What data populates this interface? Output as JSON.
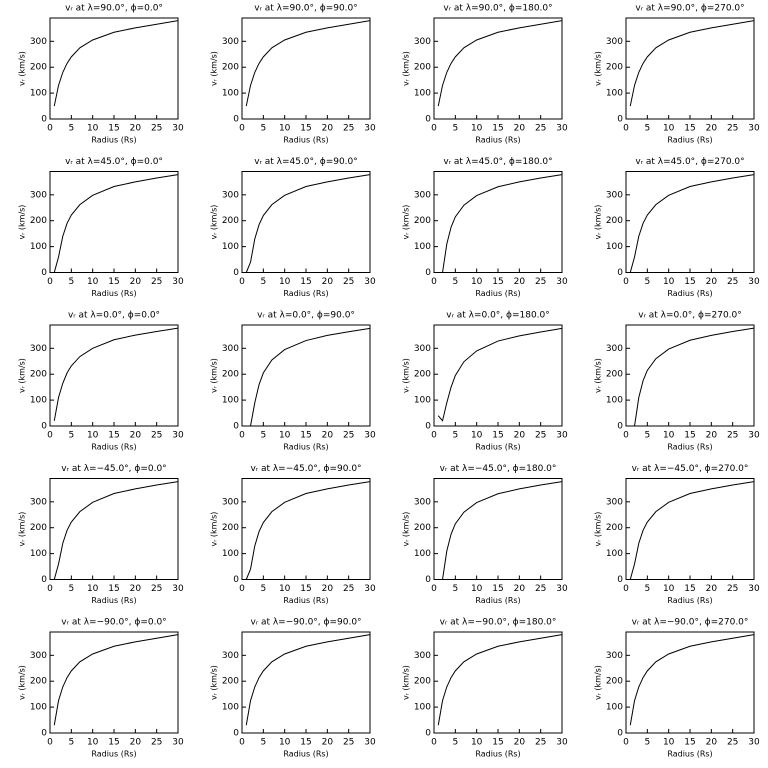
{
  "chart_data": [
    {
      "type": "line",
      "title": "vᵣ at λ=90.0°, ϕ=0.0°",
      "x_label": "Radius (Rs)",
      "y_label": "vᵣ (km/s)",
      "x": [
        1,
        2,
        3,
        4,
        5,
        7,
        10,
        15,
        20,
        25,
        30
      ],
      "values": [
        50,
        130,
        180,
        215,
        240,
        275,
        305,
        335,
        352,
        366,
        380
      ],
      "color": "#000000",
      "xlim": [
        0,
        30
      ],
      "ylim": [
        0,
        390
      ],
      "xticks": [
        0,
        5,
        10,
        15,
        20,
        25,
        30
      ],
      "yticks": [
        0,
        100,
        200,
        300
      ]
    },
    {
      "type": "line",
      "title": "vᵣ at λ=90.0°, ϕ=90.0°",
      "x_label": "Radius (Rs)",
      "y_label": "vᵣ (km/s)",
      "x": [
        1,
        2,
        3,
        4,
        5,
        7,
        10,
        15,
        20,
        25,
        30
      ],
      "values": [
        50,
        130,
        180,
        215,
        240,
        275,
        305,
        335,
        352,
        366,
        380
      ],
      "color": "#000000",
      "xlim": [
        0,
        30
      ],
      "ylim": [
        0,
        390
      ],
      "xticks": [
        0,
        5,
        10,
        15,
        20,
        25,
        30
      ],
      "yticks": [
        0,
        100,
        200,
        300
      ]
    },
    {
      "type": "line",
      "title": "vᵣ at λ=90.0°, ϕ=180.0°",
      "x_label": "Radius (Rs)",
      "y_label": "vᵣ (km/s)",
      "x": [
        1,
        2,
        3,
        4,
        5,
        7,
        10,
        15,
        20,
        25,
        30
      ],
      "values": [
        50,
        130,
        180,
        215,
        240,
        275,
        305,
        335,
        352,
        366,
        380
      ],
      "color": "#000000",
      "xlim": [
        0,
        30
      ],
      "ylim": [
        0,
        390
      ],
      "xticks": [
        0,
        5,
        10,
        15,
        20,
        25,
        30
      ],
      "yticks": [
        0,
        100,
        200,
        300
      ]
    },
    {
      "type": "line",
      "title": "vᵣ at λ=90.0°, ϕ=270.0°",
      "x_label": "Radius (Rs)",
      "y_label": "vᵣ (km/s)",
      "x": [
        1,
        2,
        3,
        4,
        5,
        7,
        10,
        15,
        20,
        25,
        30
      ],
      "values": [
        50,
        130,
        180,
        215,
        240,
        275,
        305,
        335,
        352,
        366,
        380
      ],
      "color": "#000000",
      "xlim": [
        0,
        30
      ],
      "ylim": [
        0,
        390
      ],
      "xticks": [
        0,
        5,
        10,
        15,
        20,
        25,
        30
      ],
      "yticks": [
        0,
        100,
        200,
        300
      ]
    },
    {
      "type": "line",
      "title": "vᵣ at λ=45.0°, ϕ=0.0°",
      "x_label": "Radius (Rs)",
      "y_label": "vᵣ (km/s)",
      "x": [
        1,
        2,
        3,
        4,
        5,
        7,
        10,
        15,
        20,
        25,
        30
      ],
      "values": [
        0,
        60,
        140,
        190,
        222,
        262,
        298,
        332,
        350,
        365,
        378
      ],
      "color": "#000000",
      "xlim": [
        0,
        30
      ],
      "ylim": [
        0,
        390
      ],
      "xticks": [
        0,
        5,
        10,
        15,
        20,
        25,
        30
      ],
      "yticks": [
        0,
        100,
        200,
        300
      ]
    },
    {
      "type": "line",
      "title": "vᵣ at λ=45.0°, ϕ=90.0°",
      "x_label": "Radius (Rs)",
      "y_label": "vᵣ (km/s)",
      "x": [
        1,
        2,
        3,
        4,
        5,
        7,
        10,
        15,
        20,
        25,
        30
      ],
      "values": [
        0,
        40,
        130,
        185,
        220,
        262,
        298,
        332,
        350,
        365,
        378
      ],
      "color": "#000000",
      "xlim": [
        0,
        30
      ],
      "ylim": [
        0,
        390
      ],
      "xticks": [
        0,
        5,
        10,
        15,
        20,
        25,
        30
      ],
      "yticks": [
        0,
        100,
        200,
        300
      ]
    },
    {
      "type": "line",
      "title": "vᵣ at λ=45.0°, ϕ=180.0°",
      "x_label": "Radius (Rs)",
      "y_label": "vᵣ (km/s)",
      "x": [
        1,
        2,
        3,
        4,
        5,
        7,
        10,
        15,
        20,
        25,
        30
      ],
      "values": [
        0,
        0,
        110,
        175,
        215,
        260,
        297,
        331,
        350,
        365,
        378
      ],
      "color": "#000000",
      "xlim": [
        0,
        30
      ],
      "ylim": [
        0,
        390
      ],
      "xticks": [
        0,
        5,
        10,
        15,
        20,
        25,
        30
      ],
      "yticks": [
        0,
        100,
        200,
        300
      ]
    },
    {
      "type": "line",
      "title": "vᵣ at λ=45.0°, ϕ=270.0°",
      "x_label": "Radius (Rs)",
      "y_label": "vᵣ (km/s)",
      "x": [
        1,
        2,
        3,
        4,
        5,
        7,
        10,
        15,
        20,
        25,
        30
      ],
      "values": [
        0,
        60,
        140,
        190,
        222,
        262,
        298,
        332,
        350,
        365,
        378
      ],
      "color": "#000000",
      "xlim": [
        0,
        30
      ],
      "ylim": [
        0,
        390
      ],
      "xticks": [
        0,
        5,
        10,
        15,
        20,
        25,
        30
      ],
      "yticks": [
        0,
        100,
        200,
        300
      ]
    },
    {
      "type": "line",
      "title": "vᵣ at λ=0.0°, ϕ=0.0°",
      "x_label": "Radius (Rs)",
      "y_label": "vᵣ (km/s)",
      "x": [
        1,
        2,
        3,
        4,
        5,
        7,
        10,
        15,
        20,
        25,
        30
      ],
      "values": [
        20,
        110,
        165,
        205,
        232,
        268,
        300,
        333,
        351,
        365,
        378
      ],
      "color": "#000000",
      "xlim": [
        0,
        30
      ],
      "ylim": [
        0,
        390
      ],
      "xticks": [
        0,
        5,
        10,
        15,
        20,
        25,
        30
      ],
      "yticks": [
        0,
        100,
        200,
        300
      ]
    },
    {
      "type": "line",
      "title": "vᵣ at λ=0.0°, ϕ=90.0°",
      "x_label": "Radius (Rs)",
      "y_label": "vᵣ (km/s)",
      "x": [
        1,
        2,
        3,
        4,
        5,
        7,
        10,
        15,
        20,
        25,
        30
      ],
      "values": [
        0,
        0,
        90,
        160,
        205,
        255,
        295,
        330,
        350,
        364,
        377
      ],
      "color": "#000000",
      "xlim": [
        0,
        30
      ],
      "ylim": [
        0,
        390
      ],
      "xticks": [
        0,
        5,
        10,
        15,
        20,
        25,
        30
      ],
      "yticks": [
        0,
        100,
        200,
        300
      ]
    },
    {
      "type": "line",
      "title": "vᵣ at λ=0.0°, ϕ=180.0°",
      "x_label": "Radius (Rs)",
      "y_label": "vᵣ (km/s)",
      "x": [
        1,
        2,
        3,
        4,
        5,
        7,
        10,
        15,
        20,
        25,
        30
      ],
      "values": [
        40,
        20,
        90,
        150,
        195,
        248,
        290,
        328,
        348,
        363,
        377
      ],
      "color": "#000000",
      "xlim": [
        0,
        30
      ],
      "ylim": [
        0,
        390
      ],
      "xticks": [
        0,
        5,
        10,
        15,
        20,
        25,
        30
      ],
      "yticks": [
        0,
        100,
        200,
        300
      ]
    },
    {
      "type": "line",
      "title": "vᵣ at λ=0.0°, ϕ=270.0°",
      "x_label": "Radius (Rs)",
      "y_label": "vᵣ (km/s)",
      "x": [
        1,
        2,
        3,
        4,
        5,
        7,
        10,
        15,
        20,
        25,
        30
      ],
      "values": [
        0,
        0,
        110,
        175,
        215,
        260,
        297,
        331,
        350,
        365,
        378
      ],
      "color": "#000000",
      "xlim": [
        0,
        30
      ],
      "ylim": [
        0,
        390
      ],
      "xticks": [
        0,
        5,
        10,
        15,
        20,
        25,
        30
      ],
      "yticks": [
        0,
        100,
        200,
        300
      ]
    },
    {
      "type": "line",
      "title": "vᵣ at λ=−45.0°, ϕ=0.0°",
      "x_label": "Radius (Rs)",
      "y_label": "vᵣ (km/s)",
      "x": [
        1,
        2,
        3,
        4,
        5,
        7,
        10,
        15,
        20,
        25,
        30
      ],
      "values": [
        0,
        60,
        140,
        190,
        222,
        262,
        298,
        332,
        350,
        365,
        378
      ],
      "color": "#000000",
      "xlim": [
        0,
        30
      ],
      "ylim": [
        0,
        390
      ],
      "xticks": [
        0,
        5,
        10,
        15,
        20,
        25,
        30
      ],
      "yticks": [
        0,
        100,
        200,
        300
      ]
    },
    {
      "type": "line",
      "title": "vᵣ at λ=−45.0°, ϕ=90.0°",
      "x_label": "Radius (Rs)",
      "y_label": "vᵣ (km/s)",
      "x": [
        1,
        2,
        3,
        4,
        5,
        7,
        10,
        15,
        20,
        25,
        30
      ],
      "values": [
        0,
        40,
        130,
        185,
        220,
        262,
        298,
        332,
        350,
        365,
        378
      ],
      "color": "#000000",
      "xlim": [
        0,
        30
      ],
      "ylim": [
        0,
        390
      ],
      "xticks": [
        0,
        5,
        10,
        15,
        20,
        25,
        30
      ],
      "yticks": [
        0,
        100,
        200,
        300
      ]
    },
    {
      "type": "line",
      "title": "vᵣ at λ=−45.0°, ϕ=180.0°",
      "x_label": "Radius (Rs)",
      "y_label": "vᵣ (km/s)",
      "x": [
        1,
        2,
        3,
        4,
        5,
        7,
        10,
        15,
        20,
        25,
        30
      ],
      "values": [
        0,
        0,
        110,
        175,
        215,
        260,
        297,
        331,
        350,
        365,
        378
      ],
      "color": "#000000",
      "xlim": [
        0,
        30
      ],
      "ylim": [
        0,
        390
      ],
      "xticks": [
        0,
        5,
        10,
        15,
        20,
        25,
        30
      ],
      "yticks": [
        0,
        100,
        200,
        300
      ]
    },
    {
      "type": "line",
      "title": "vᵣ at λ=−45.0°, ϕ=270.0°",
      "x_label": "Radius (Rs)",
      "y_label": "vᵣ (km/s)",
      "x": [
        1,
        2,
        3,
        4,
        5,
        7,
        10,
        15,
        20,
        25,
        30
      ],
      "values": [
        0,
        60,
        140,
        190,
        222,
        262,
        298,
        332,
        350,
        365,
        378
      ],
      "color": "#000000",
      "xlim": [
        0,
        30
      ],
      "ylim": [
        0,
        390
      ],
      "xticks": [
        0,
        5,
        10,
        15,
        20,
        25,
        30
      ],
      "yticks": [
        0,
        100,
        200,
        300
      ]
    },
    {
      "type": "line",
      "title": "vᵣ at λ=−90.0°, ϕ=0.0°",
      "x_label": "Radius (Rs)",
      "y_label": "vᵣ (km/s)",
      "x": [
        1,
        2,
        3,
        4,
        5,
        7,
        10,
        15,
        20,
        25,
        30
      ],
      "values": [
        30,
        125,
        178,
        214,
        240,
        275,
        305,
        335,
        352,
        366,
        380
      ],
      "color": "#000000",
      "xlim": [
        0,
        30
      ],
      "ylim": [
        0,
        390
      ],
      "xticks": [
        0,
        5,
        10,
        15,
        20,
        25,
        30
      ],
      "yticks": [
        0,
        100,
        200,
        300
      ]
    },
    {
      "type": "line",
      "title": "vᵣ at λ=−90.0°, ϕ=90.0°",
      "x_label": "Radius (Rs)",
      "y_label": "vᵣ (km/s)",
      "x": [
        1,
        2,
        3,
        4,
        5,
        7,
        10,
        15,
        20,
        25,
        30
      ],
      "values": [
        30,
        125,
        178,
        214,
        240,
        275,
        305,
        335,
        352,
        366,
        380
      ],
      "color": "#000000",
      "xlim": [
        0,
        30
      ],
      "ylim": [
        0,
        390
      ],
      "xticks": [
        0,
        5,
        10,
        15,
        20,
        25,
        30
      ],
      "yticks": [
        0,
        100,
        200,
        300
      ]
    },
    {
      "type": "line",
      "title": "vᵣ at λ=−90.0°, ϕ=180.0°",
      "x_label": "Radius (Rs)",
      "y_label": "vᵣ (km/s)",
      "x": [
        1,
        2,
        3,
        4,
        5,
        7,
        10,
        15,
        20,
        25,
        30
      ],
      "values": [
        30,
        125,
        178,
        214,
        240,
        275,
        305,
        335,
        352,
        366,
        380
      ],
      "color": "#000000",
      "xlim": [
        0,
        30
      ],
      "ylim": [
        0,
        390
      ],
      "xticks": [
        0,
        5,
        10,
        15,
        20,
        25,
        30
      ],
      "yticks": [
        0,
        100,
        200,
        300
      ]
    },
    {
      "type": "line",
      "title": "vᵣ at λ=−90.0°, ϕ=270.0°",
      "x_label": "Radius (Rs)",
      "y_label": "vᵣ (km/s)",
      "x": [
        1,
        2,
        3,
        4,
        5,
        7,
        10,
        15,
        20,
        25,
        30
      ],
      "values": [
        30,
        125,
        178,
        214,
        240,
        275,
        305,
        335,
        352,
        366,
        380
      ],
      "color": "#000000",
      "xlim": [
        0,
        30
      ],
      "ylim": [
        0,
        390
      ],
      "xticks": [
        0,
        5,
        10,
        15,
        20,
        25,
        30
      ],
      "yticks": [
        0,
        100,
        200,
        300
      ]
    }
  ]
}
